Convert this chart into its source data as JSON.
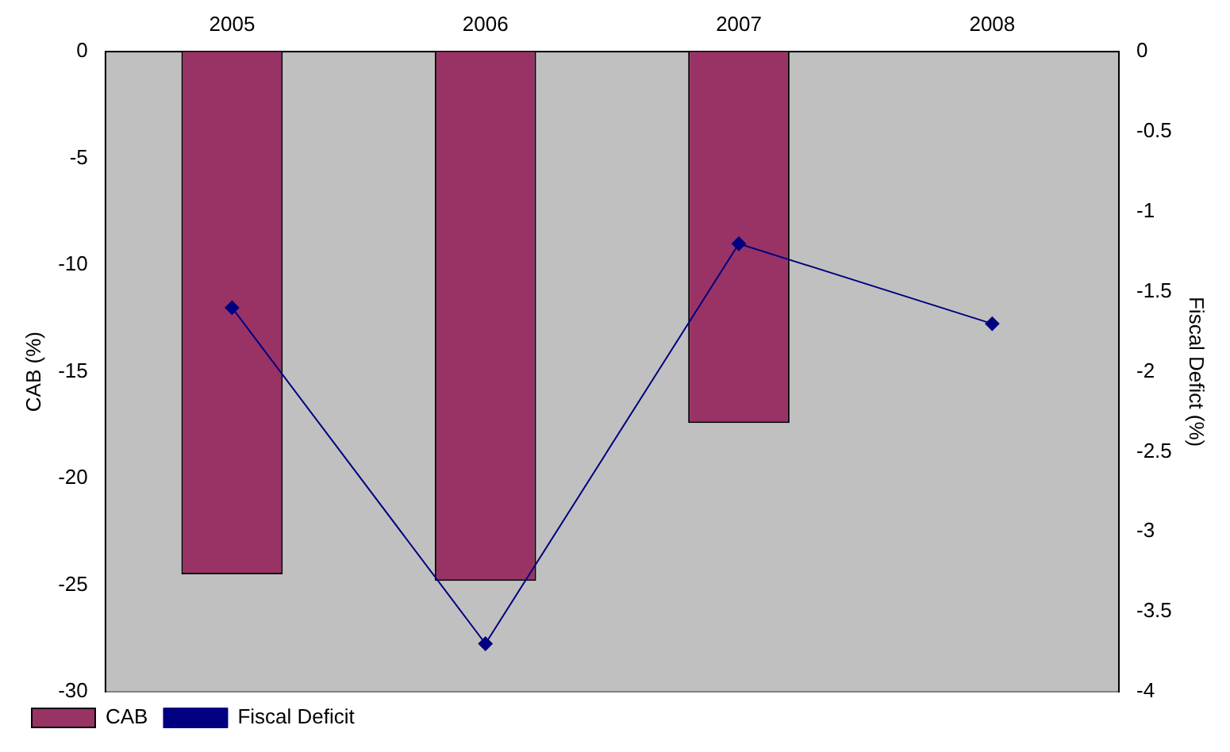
{
  "chart_data": {
    "type": "bar",
    "categories": [
      "2005",
      "2006",
      "2007",
      "2008"
    ],
    "ylabel": "CAB (%)",
    "y2label": "Fiscal Defict (%)",
    "ylim": [
      -30,
      0
    ],
    "yticks": [
      0,
      -5,
      -10,
      -15,
      -20,
      -25,
      -30
    ],
    "y2lim": [
      -4,
      0
    ],
    "y2ticks": [
      0,
      -0.5,
      -1,
      -1.5,
      -2,
      -2.5,
      -3,
      -3.5,
      -4
    ],
    "series": [
      {
        "name": "CAB",
        "color": "#993366",
        "values": [
          -24.5,
          -24.8,
          -17.4,
          null
        ]
      },
      {
        "name": "Fiscal Deficit",
        "type": "line",
        "axis": "y2",
        "color": "#000080",
        "marker": "diamond",
        "values": [
          -1.6,
          -3.7,
          -1.2,
          -1.7
        ]
      }
    ],
    "grid": false,
    "legend": "bottom left"
  }
}
